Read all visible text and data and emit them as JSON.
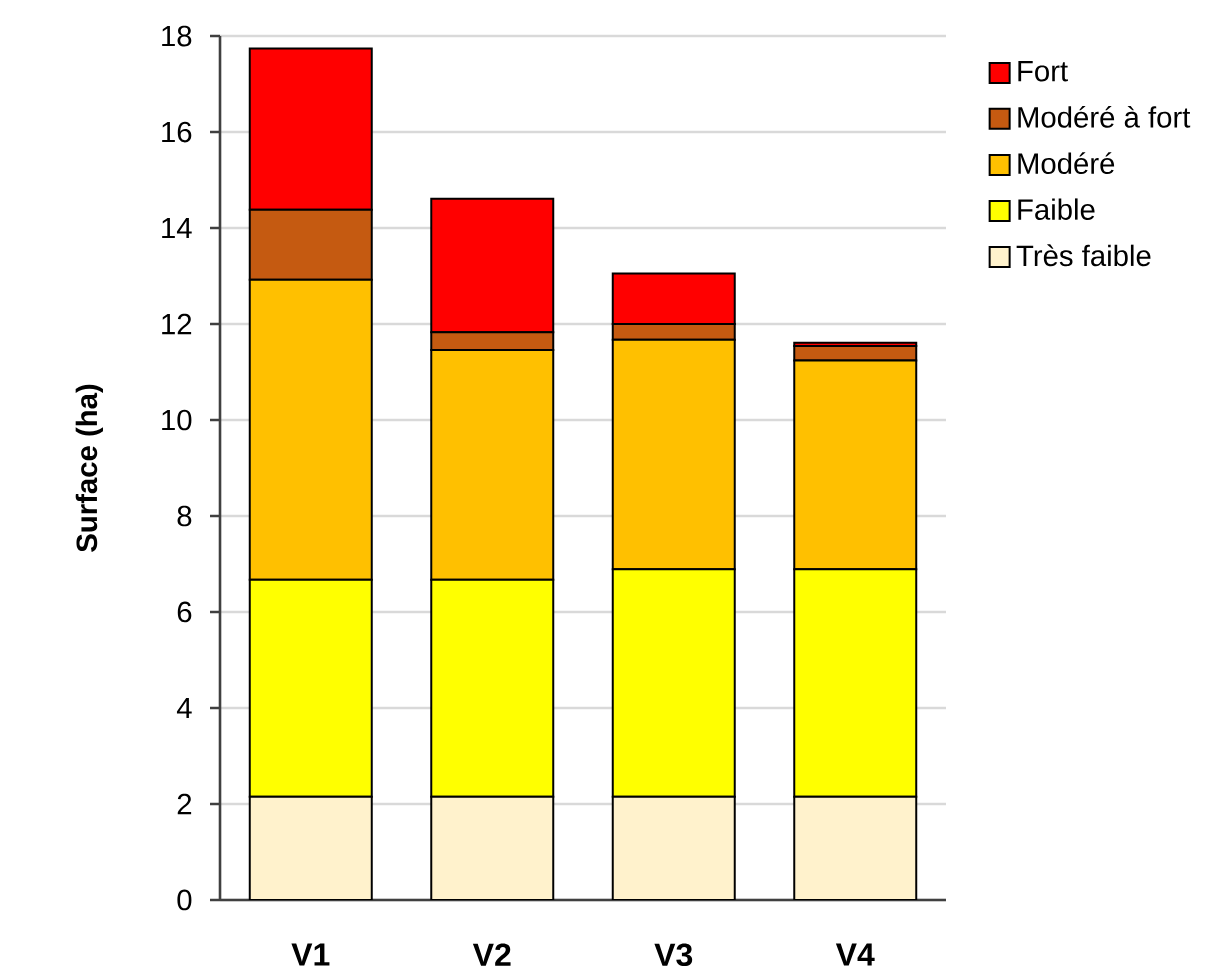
{
  "chart_data": {
    "type": "bar",
    "stacked": true,
    "ylabel": "Surface (ha)",
    "categories": [
      "V1",
      "V2",
      "V3",
      "V4"
    ],
    "series": [
      {
        "name": "Très faible",
        "color": "#fff2cc",
        "values": [
          2.15,
          2.15,
          2.15,
          2.15
        ]
      },
      {
        "name": "Faible",
        "color": "#ffff00",
        "values": [
          4.52,
          4.52,
          4.74,
          4.74
        ]
      },
      {
        "name": "Modéré",
        "color": "#ffc000",
        "values": [
          6.25,
          4.79,
          4.78,
          4.35
        ]
      },
      {
        "name": "Modéré à fort",
        "color": "#c55a11",
        "values": [
          1.46,
          0.37,
          0.33,
          0.3
        ]
      },
      {
        "name": "Fort",
        "color": "#ff0000",
        "values": [
          3.36,
          2.78,
          1.05,
          0.07
        ]
      }
    ],
    "ylim": [
      0,
      18
    ],
    "yticks": [
      0,
      2,
      4,
      6,
      8,
      10,
      12,
      14,
      16,
      18
    ],
    "grid": "y",
    "legend": "top right"
  }
}
